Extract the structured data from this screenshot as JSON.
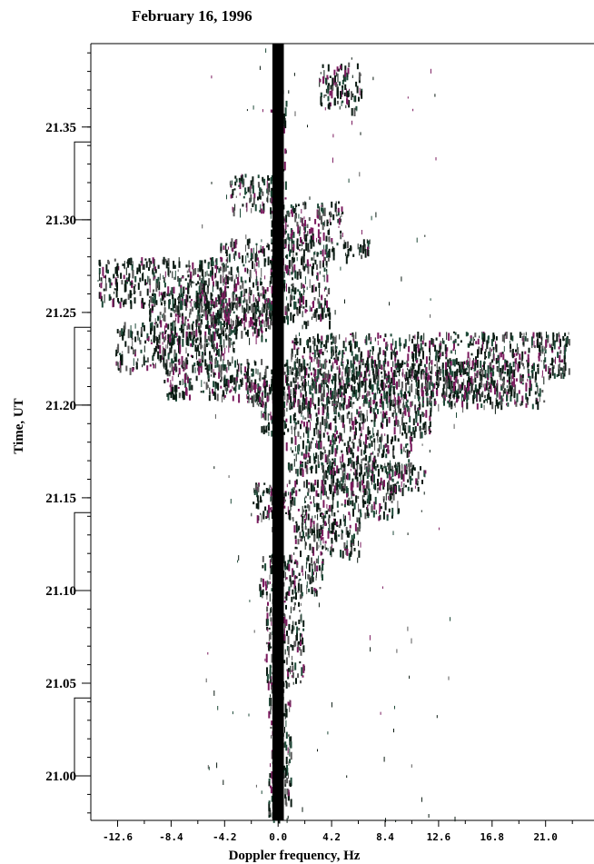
{
  "chart_data": {
    "type": "scatter",
    "title": "February 16, 1996",
    "xlabel": "Doppler frequency, Hz",
    "ylabel": "Time, UT",
    "x_ticks": [
      -12.6,
      -8.4,
      -4.2,
      0.0,
      4.2,
      8.4,
      12.6,
      16.8,
      21.0
    ],
    "x_tick_labels": [
      "-12.6",
      "-8.4",
      "-4.2",
      "0.0",
      "4.2",
      "8.4",
      "12.6",
      "16.8",
      "21.0"
    ],
    "y_ticks": [
      21.0,
      21.05,
      21.1,
      21.15,
      21.2,
      21.25,
      21.3,
      21.35
    ],
    "y_tick_labels": [
      "21.00",
      "21.05",
      "21.10",
      "21.15",
      "21.20",
      "21.25",
      "21.30",
      "21.35"
    ],
    "xlim": [
      -14.7,
      24.8
    ],
    "ylim": [
      20.976,
      21.395
    ],
    "grid": false,
    "brackets": [
      [
        21.0,
        21.042
      ],
      [
        21.1,
        21.142
      ],
      [
        21.2,
        21.242
      ],
      [
        21.3,
        21.342
      ]
    ],
    "colors": {
      "trace": "#000000",
      "echo_dark": "#0a1a12",
      "echo_green": "#1e4a38",
      "echo_magenta": "#7a1a5e",
      "echo_gray": "#5a5a5a"
    },
    "series": [
      {
        "bands": [
          [
            21.285,
            21.37,
            -0.6,
            0.6
          ],
          [
            21.36,
            21.385,
            3.2,
            6.5
          ],
          [
            21.305,
            21.325,
            -3.8,
            0.0
          ],
          [
            21.29,
            21.31,
            0.5,
            5.0
          ],
          [
            21.28,
            21.29,
            -4.6,
            7.2
          ],
          [
            21.255,
            21.28,
            -14.2,
            -4.0
          ],
          [
            21.245,
            21.28,
            -6.5,
            4.0
          ],
          [
            21.235,
            21.26,
            -10.2,
            0.0
          ],
          [
            21.22,
            21.245,
            -12.8,
            -3.5
          ],
          [
            21.215,
            21.24,
            1.0,
            22.8
          ],
          [
            21.205,
            21.225,
            -9.0,
            18.5
          ],
          [
            21.2,
            21.215,
            -2.5,
            21.0
          ],
          [
            21.185,
            21.205,
            -1.5,
            12.0
          ],
          [
            21.165,
            21.185,
            0.5,
            10.5
          ],
          [
            21.155,
            21.17,
            3.0,
            11.5
          ],
          [
            21.14,
            21.16,
            -2.0,
            9.5
          ],
          [
            21.12,
            21.14,
            1.0,
            6.5
          ],
          [
            21.1,
            21.12,
            -1.5,
            3.5
          ],
          [
            21.05,
            21.1,
            -1.0,
            2.0
          ],
          [
            20.976,
            21.05,
            -0.8,
            1.0
          ]
        ]
      }
    ]
  }
}
